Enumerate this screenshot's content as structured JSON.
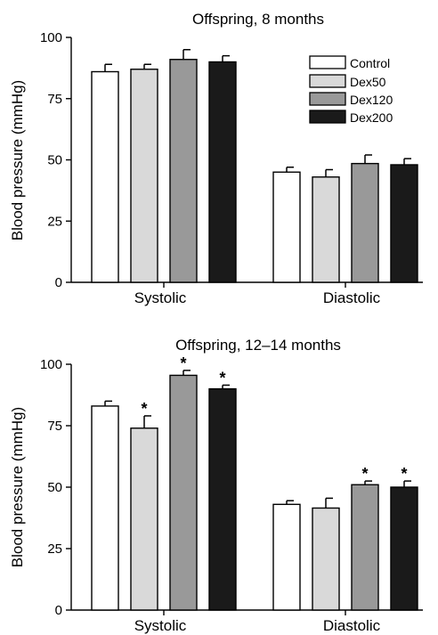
{
  "legend": [
    {
      "name": "Control",
      "color": "#ffffff"
    },
    {
      "name": "Dex50",
      "color": "#d9d9d9"
    },
    {
      "name": "Dex120",
      "color": "#999999"
    },
    {
      "name": "Dex200",
      "color": "#1a1a1a"
    }
  ],
  "chart_data": [
    {
      "type": "bar",
      "title": "Offspring, 8 months",
      "ylabel": "Blood pressure (mmHg)",
      "xlabel": "",
      "ylim": [
        0,
        100
      ],
      "yticks": [
        "0",
        "25",
        "50",
        "75",
        "100"
      ],
      "categories": [
        "Systolic",
        "Diastolic"
      ],
      "series": [
        {
          "name": "Control",
          "values": [
            86,
            45
          ],
          "errors": [
            3,
            2
          ],
          "sig": [
            false,
            false
          ]
        },
        {
          "name": "Dex50",
          "values": [
            87,
            43
          ],
          "errors": [
            2,
            3
          ],
          "sig": [
            false,
            false
          ]
        },
        {
          "name": "Dex120",
          "values": [
            91,
            48.5
          ],
          "errors": [
            4,
            3.5
          ],
          "sig": [
            false,
            false
          ]
        },
        {
          "name": "Dex200",
          "values": [
            90,
            48
          ],
          "errors": [
            2.5,
            2.5
          ],
          "sig": [
            false,
            false
          ]
        }
      ],
      "legend_position": "top-right",
      "sig_marker": "*"
    },
    {
      "type": "bar",
      "title": "Offspring, 12–14 months",
      "ylabel": "Blood pressure (mmHg)",
      "xlabel": "",
      "ylim": [
        0,
        100
      ],
      "yticks": [
        "0",
        "25",
        "50",
        "75",
        "100"
      ],
      "categories": [
        "Systolic",
        "Diastolic"
      ],
      "series": [
        {
          "name": "Control",
          "values": [
            83,
            43
          ],
          "errors": [
            2,
            1.5
          ],
          "sig": [
            false,
            false
          ]
        },
        {
          "name": "Dex50",
          "values": [
            74,
            41.5
          ],
          "errors": [
            5,
            4
          ],
          "sig": [
            true,
            false
          ]
        },
        {
          "name": "Dex120",
          "values": [
            95.5,
            51
          ],
          "errors": [
            2,
            1.5
          ],
          "sig": [
            true,
            true
          ]
        },
        {
          "name": "Dex200",
          "values": [
            90,
            50
          ],
          "errors": [
            1.5,
            2.5
          ],
          "sig": [
            true,
            true
          ]
        }
      ],
      "sig_marker": "*"
    }
  ]
}
